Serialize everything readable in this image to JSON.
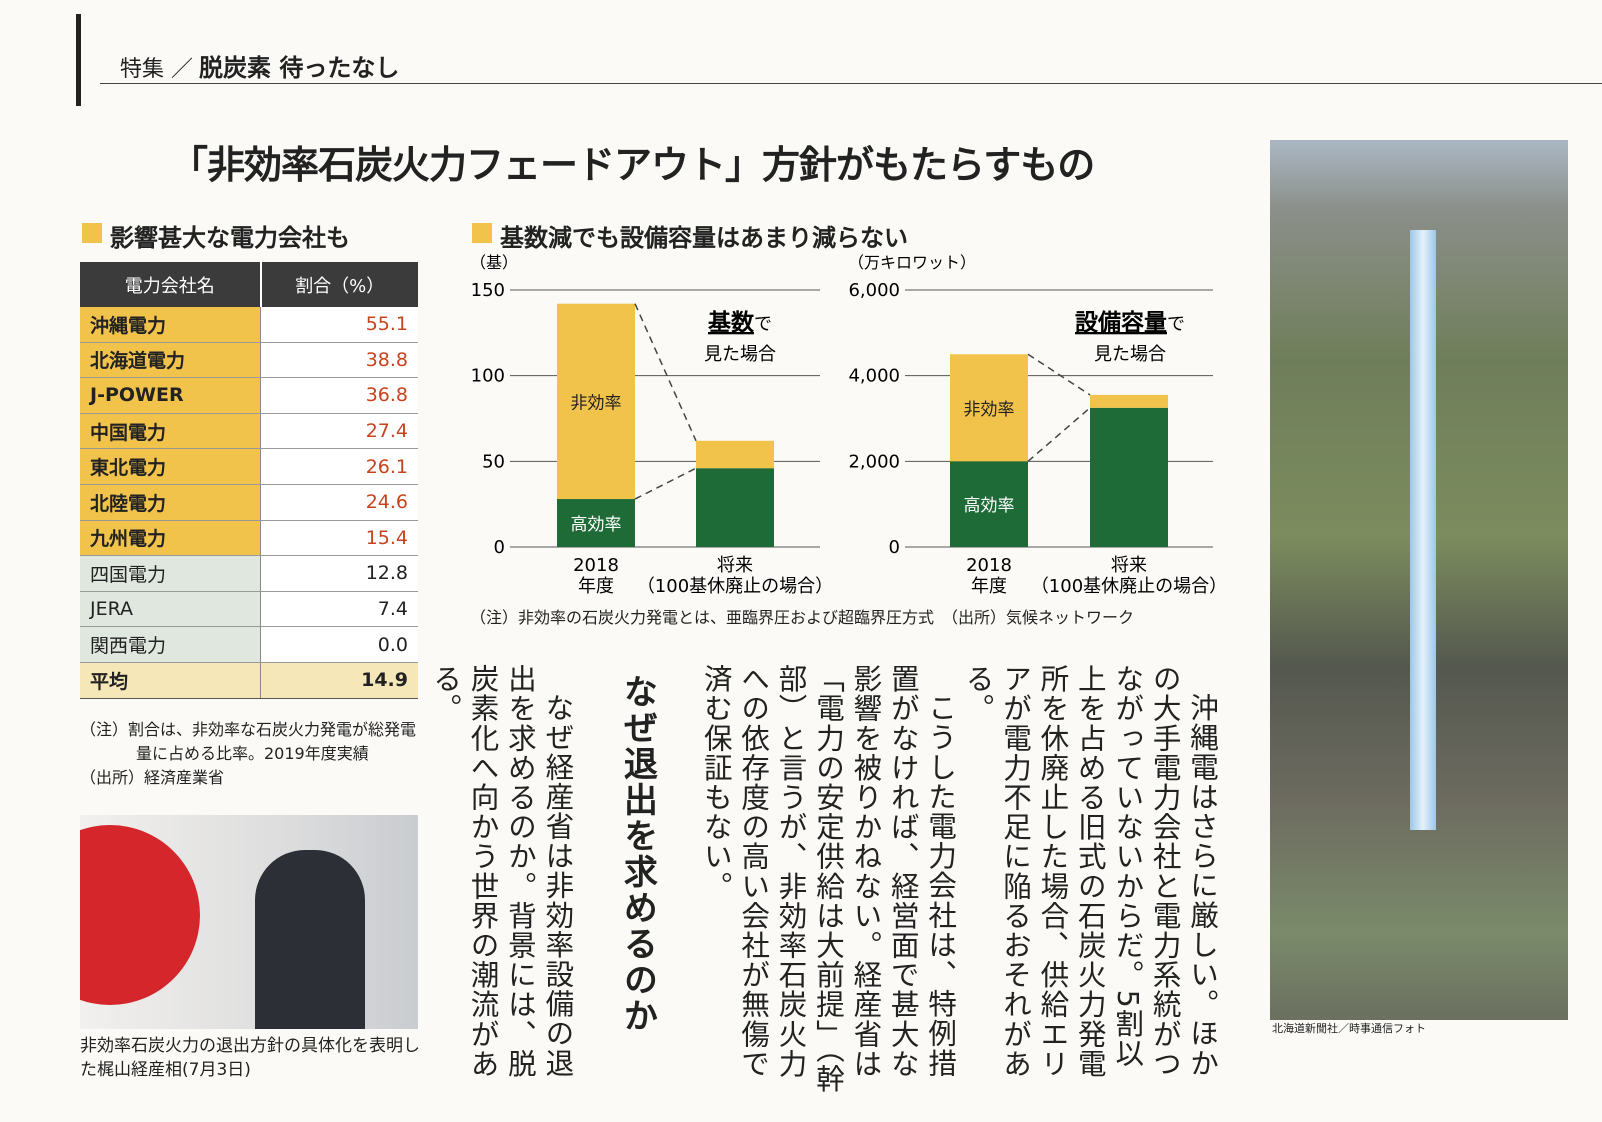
{
  "header": {
    "section": "特集",
    "separator": "／",
    "title": "脱炭素 待ったなし"
  },
  "headline": "「非効率石炭火力フェードアウト」方針がもたらすもの",
  "table": {
    "title": "影響甚大な電力会社も",
    "columns": [
      "電力会社名",
      "割合（%）"
    ],
    "rows": [
      [
        "沖縄電力",
        "55.1"
      ],
      [
        "北海道電力",
        "38.8"
      ],
      [
        "J-POWER",
        "36.8"
      ],
      [
        "中国電力",
        "27.4"
      ],
      [
        "東北電力",
        "26.1"
      ],
      [
        "北陸電力",
        "24.6"
      ],
      [
        "九州電力",
        "15.4"
      ],
      [
        "四国電力",
        "12.8"
      ],
      [
        "JERA",
        "7.4"
      ],
      [
        "関西電力",
        "0.0"
      ]
    ],
    "average": [
      "平均",
      "14.9"
    ],
    "notes": [
      "（注）割合は、非効率な石炭火力発電が総発電量に占める比率。2019年度実績",
      "（出所）経済産業省"
    ]
  },
  "chart_section": {
    "title": "基数減でも設備容量はあまり減らない",
    "note": "（注）非効率の石炭火力発電とは、亜臨界圧および超臨界圧方式　（出所）気候ネットワーク"
  },
  "chart_data": [
    {
      "type": "bar",
      "stacked": true,
      "y_label": "（基）",
      "categories": [
        "2018",
        "将来"
      ],
      "category_sublabels": [
        "年度",
        "（100基休廃止の場合）"
      ],
      "series": [
        {
          "name": "高効率",
          "color": "#1e6b38",
          "values": [
            28,
            46
          ]
        },
        {
          "name": "非効率",
          "color": "#f2c34b",
          "values": [
            114,
            16
          ]
        }
      ],
      "ylim": [
        0,
        150
      ],
      "yticks": [
        0,
        50,
        100,
        150
      ],
      "grid": true,
      "annotation": {
        "emphasis": "基数",
        "suffix": "で",
        "line2": "見た場合"
      }
    },
    {
      "type": "bar",
      "stacked": true,
      "y_label": "（万キロワット）",
      "categories": [
        "2018",
        "将来"
      ],
      "category_sublabels": [
        "年度",
        "（100基休廃止の場合）"
      ],
      "series": [
        {
          "name": "高効率",
          "color": "#1e6b38",
          "values": [
            2000,
            3250
          ]
        },
        {
          "name": "非効率",
          "color": "#f2c34b",
          "values": [
            2500,
            300
          ]
        }
      ],
      "ylim": [
        0,
        6000
      ],
      "yticks": [
        0,
        {
          "value": 2000,
          "label": "2,000"
        },
        {
          "value": 4000,
          "label": "4,000"
        },
        {
          "value": 6000,
          "label": "6,000"
        }
      ],
      "grid": true,
      "annotation": {
        "emphasis": "設備容量",
        "suffix": "で",
        "line2": "見た場合"
      }
    }
  ],
  "article": {
    "body": [
      "沖縄電はさらに厳しい。ほかの大手電力会社と電力系統がつながっていないからだ。5割以上を占める旧式の石炭火力発電所を休廃止した場合、供給エリアが電力不足に陥るおそれがある。",
      "こうした電力会社は、特例措置がなければ、経営面で甚大な影響を被りかねない。経産省は「電力の安定供給は大前提」（幹部）と言うが、非効率石炭火力への依存度の高い会社が無傷で済む保証もない。"
    ],
    "heading": "なぜ退出を求めるのか",
    "body2": [
      "なぜ経産省は非効率設備の退出を求めるのか。背景には、脱炭素化へ向かう世界の潮流がある。"
    ]
  },
  "photo_caption": "非効率石炭火力の退出方針の具体化を表明した梶山経産相(7月3日)",
  "photo_credit": "北海道新聞社／時事通信フォト"
}
